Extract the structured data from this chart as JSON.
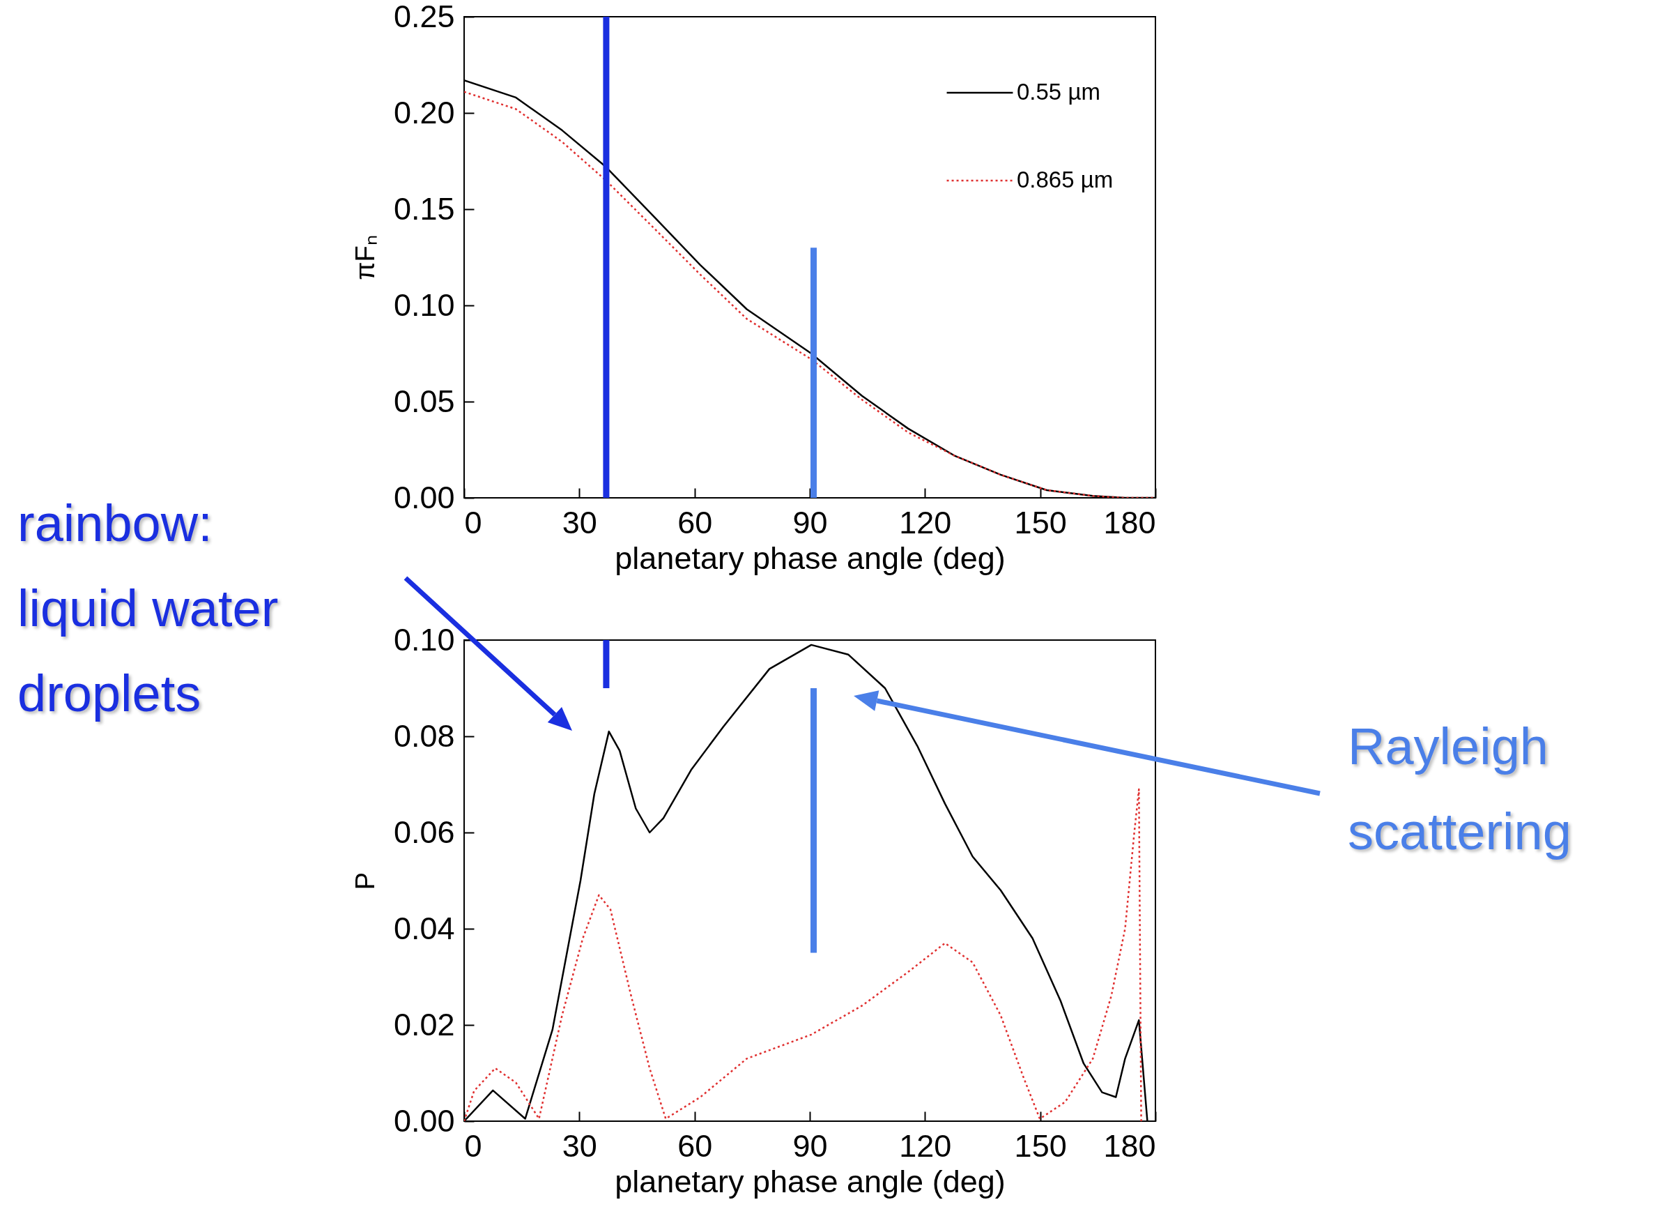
{
  "chart_data": [
    {
      "type": "line",
      "xlabel": "planetary phase angle (deg)",
      "ylabel": "πFₙ",
      "xlim": [
        0,
        180
      ],
      "xticks": [
        0,
        30,
        60,
        90,
        120,
        150,
        180
      ],
      "ylim": [
        0,
        0.25
      ],
      "yticks": [
        {
          "value": 0,
          "label": "0.00"
        },
        {
          "value": 0.05,
          "label": "0.05"
        },
        {
          "value": 0.1,
          "label": "0.10"
        },
        {
          "value": 0.15,
          "label": "0.15"
        },
        {
          "value": 0.2,
          "label": "0.20"
        },
        {
          "value": 0.25,
          "label": "0.25"
        }
      ],
      "legend": "top right",
      "series": [
        {
          "name": "0.55 µm",
          "color": "#000000",
          "line_style": "solid",
          "x": [
            0,
            13.5,
            25.5,
            36.9,
            49.5,
            61.5,
            73.6,
            90.4,
            103.6,
            115.6,
            127.6,
            139.7,
            151.7,
            163.7,
            172.1,
            180
          ],
          "values": [
            0.217,
            0.208,
            0.191,
            0.172,
            0.146,
            0.121,
            0.098,
            0.075,
            0.053,
            0.036,
            0.022,
            0.012,
            0.004,
            0.001,
            0,
            0
          ]
        },
        {
          "name": "0.865 µm",
          "color": "#e03030",
          "line_style": "dotted",
          "x": [
            0,
            13.5,
            25.5,
            36.9,
            49.5,
            61.5,
            73.6,
            90.4,
            103.6,
            115.6,
            127.6,
            139.7,
            151.7,
            163.7,
            172.1,
            180
          ],
          "values": [
            0.211,
            0.202,
            0.185,
            0.165,
            0.14,
            0.116,
            0.093,
            0.072,
            0.051,
            0.034,
            0.022,
            0.012,
            0.004,
            0.001,
            0,
            0
          ]
        },
        {
          "color": "#1a2fe0",
          "line_style": "solid",
          "x": [
            37,
            37
          ],
          "values": [
            0.25,
            0
          ]
        },
        {
          "color": "#4a7fe8",
          "line_style": "solid",
          "x": [
            91,
            91
          ],
          "values": [
            0.13,
            0
          ]
        }
      ]
    },
    {
      "type": "line",
      "xlabel": "planetary phase angle (deg)",
      "ylabel": "P",
      "xlim": [
        0,
        180
      ],
      "xticks": [
        0,
        30,
        60,
        90,
        120,
        150,
        180
      ],
      "ylim": [
        0,
        0.1
      ],
      "yticks": [
        {
          "value": 0,
          "label": "0.00"
        },
        {
          "value": 0.02,
          "label": "0.02"
        },
        {
          "value": 0.04,
          "label": "0.04"
        },
        {
          "value": 0.06,
          "label": "0.06"
        },
        {
          "value": 0.08,
          "label": "0.08"
        },
        {
          "value": 0.1,
          "label": "0.10"
        }
      ],
      "series": [
        {
          "color": "#000000",
          "line_style": "solid",
          "x": [
            0,
            7.5,
            15.9,
            23,
            30.3,
            33.9,
            37.7,
            40.5,
            44.7,
            48.3,
            51.9,
            59.1,
            67.5,
            79.5,
            90.4,
            100,
            109.6,
            118,
            125.2,
            132.4,
            139.7,
            148,
            155.3,
            161.3,
            166.1,
            169.7,
            172.1,
            175.7,
            177.9
          ],
          "values": [
            0,
            0.0064,
            0.0005,
            0.019,
            0.05,
            0.068,
            0.081,
            0.077,
            0.065,
            0.06,
            0.063,
            0.073,
            0.082,
            0.094,
            0.099,
            0.097,
            0.09,
            0.078,
            0.066,
            0.055,
            0.048,
            0.038,
            0.025,
            0.012,
            0.006,
            0.005,
            0.013,
            0.021,
            0
          ]
        },
        {
          "color": "#e03030",
          "line_style": "dotted",
          "x": [
            0,
            2.6,
            8.1,
            13.5,
            19.5,
            25.5,
            30.9,
            35.1,
            38.1,
            43.5,
            48.3,
            52.5,
            61.5,
            73.6,
            90.4,
            103.6,
            115.6,
            125.2,
            132.4,
            139.7,
            145.7,
            149.9,
            156.5,
            163.7,
            168.5,
            172.1,
            174.5,
            175.7,
            176.3
          ],
          "values": [
            0,
            0.0063,
            0.011,
            0.008,
            0.0005,
            0.022,
            0.038,
            0.047,
            0.044,
            0.026,
            0.011,
            0.0005,
            0.005,
            0.013,
            0.018,
            0.024,
            0.031,
            0.037,
            0.033,
            0.022,
            0.009,
            0.0005,
            0.004,
            0.013,
            0.026,
            0.04,
            0.06,
            0.069,
            0
          ]
        },
        {
          "color": "#1a2fe0",
          "line_style": "solid",
          "x": [
            37,
            37
          ],
          "values": [
            0.1,
            0.09
          ]
        },
        {
          "color": "#4a7fe8",
          "line_style": "solid",
          "x": [
            91,
            91
          ],
          "values": [
            0.09,
            0.035
          ]
        }
      ],
      "annotations": [
        "rainbow:\nliquid water\ndroplets",
        "Rayleigh\nscattering"
      ]
    }
  ]
}
